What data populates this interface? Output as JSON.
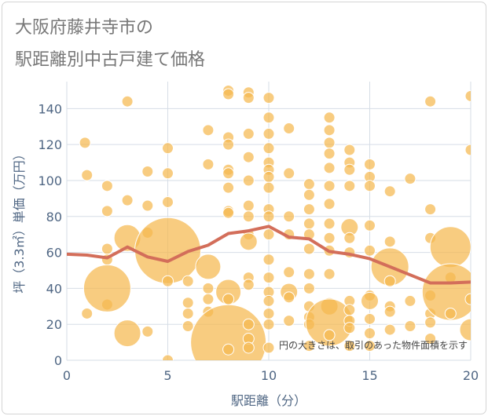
{
  "title_lines": [
    "大阪府藤井寺市の",
    "駅距離別中古戸建て価格"
  ],
  "chart_data": {
    "type": "scatter",
    "title": "大阪府藤井寺市の駅距離別中古戸建て価格",
    "xlabel": "駅距離（分）",
    "ylabel": "坪（3.3㎡）単価（万円）",
    "xlim": [
      0,
      20
    ],
    "ylim": [
      0,
      155
    ],
    "xticks": [
      0,
      5,
      10,
      15,
      20
    ],
    "yticks": [
      0,
      20,
      40,
      60,
      80,
      100,
      120,
      140
    ],
    "grid": true,
    "annotation": "円の大きさは、取引のあった物件面積を示す",
    "colors": {
      "bubble": "#f5b84f",
      "bubble_edge": "#ffffff",
      "line": "#d36e5a",
      "grid": "#d6dde6",
      "axis_text": "#506784"
    },
    "trend": {
      "x": [
        0,
        1,
        2,
        3,
        4,
        5,
        6,
        7,
        8,
        9,
        10,
        11,
        12,
        13,
        14,
        15,
        16,
        17,
        18,
        19,
        20
      ],
      "y": [
        59,
        58.5,
        57,
        63,
        57.5,
        55,
        60.5,
        64,
        70.5,
        72,
        74.5,
        68.5,
        67.5,
        60.5,
        59,
        56.5,
        52,
        47.5,
        43,
        43,
        43.5
      ]
    },
    "bubbles": [
      {
        "x": 0.9,
        "y": 121,
        "r": 7
      },
      {
        "x": 1,
        "y": 103,
        "r": 7
      },
      {
        "x": 1,
        "y": 26,
        "r": 7
      },
      {
        "x": 2,
        "y": 97,
        "r": 7
      },
      {
        "x": 2,
        "y": 83,
        "r": 7
      },
      {
        "x": 2,
        "y": 62,
        "r": 7
      },
      {
        "x": 2,
        "y": 56,
        "r": 7
      },
      {
        "x": 2,
        "y": 31,
        "r": 7
      },
      {
        "x": 2,
        "y": 40,
        "r": 30
      },
      {
        "x": 3,
        "y": 144,
        "r": 7
      },
      {
        "x": 3,
        "y": 89,
        "r": 7
      },
      {
        "x": 3,
        "y": 68,
        "r": 17
      },
      {
        "x": 3,
        "y": 15,
        "r": 17
      },
      {
        "x": 4,
        "y": 105,
        "r": 7
      },
      {
        "x": 4,
        "y": 86,
        "r": 7
      },
      {
        "x": 4,
        "y": 71,
        "r": 7
      },
      {
        "x": 4,
        "y": 16,
        "r": 7
      },
      {
        "x": 5,
        "y": 118,
        "r": 7
      },
      {
        "x": 5,
        "y": 104,
        "r": 7
      },
      {
        "x": 5,
        "y": 88,
        "r": 7
      },
      {
        "x": 5,
        "y": 61,
        "r": 42
      },
      {
        "x": 5,
        "y": 44,
        "r": 7
      },
      {
        "x": 5,
        "y": 0,
        "r": 7
      },
      {
        "x": 6,
        "y": 44,
        "r": 7
      },
      {
        "x": 6,
        "y": 32,
        "r": 7
      },
      {
        "x": 6,
        "y": 26,
        "r": 7
      },
      {
        "x": 6,
        "y": 19,
        "r": 7
      },
      {
        "x": 7,
        "y": 128,
        "r": 7
      },
      {
        "x": 7,
        "y": 109,
        "r": 7
      },
      {
        "x": 7,
        "y": 52,
        "r": 16
      },
      {
        "x": 7,
        "y": 40,
        "r": 7
      },
      {
        "x": 7,
        "y": 34,
        "r": 7
      },
      {
        "x": 7,
        "y": 27,
        "r": 7
      },
      {
        "x": 8,
        "y": 150,
        "r": 7
      },
      {
        "x": 8,
        "y": 148,
        "r": 7
      },
      {
        "x": 8,
        "y": 124,
        "r": 7
      },
      {
        "x": 8,
        "y": 120,
        "r": 7
      },
      {
        "x": 8,
        "y": 106,
        "r": 7
      },
      {
        "x": 8,
        "y": 104,
        "r": 7
      },
      {
        "x": 8,
        "y": 96,
        "r": 7
      },
      {
        "x": 8,
        "y": 83,
        "r": 7
      },
      {
        "x": 8,
        "y": 82,
        "r": 7
      },
      {
        "x": 8,
        "y": 38,
        "r": 16
      },
      {
        "x": 8,
        "y": 34,
        "r": 7
      },
      {
        "x": 8,
        "y": 10,
        "r": 48
      },
      {
        "x": 8,
        "y": 6,
        "r": 7
      },
      {
        "x": 9,
        "y": 149,
        "r": 7
      },
      {
        "x": 9,
        "y": 146,
        "r": 7
      },
      {
        "x": 9,
        "y": 126,
        "r": 7
      },
      {
        "x": 9,
        "y": 113,
        "r": 7
      },
      {
        "x": 9,
        "y": 100,
        "r": 7
      },
      {
        "x": 9,
        "y": 86,
        "r": 7
      },
      {
        "x": 9,
        "y": 80,
        "r": 7
      },
      {
        "x": 9,
        "y": 70,
        "r": 7
      },
      {
        "x": 9,
        "y": 66,
        "r": 11
      },
      {
        "x": 9,
        "y": 46,
        "r": 7
      },
      {
        "x": 9,
        "y": 42,
        "r": 7
      },
      {
        "x": 9,
        "y": 20,
        "r": 7
      },
      {
        "x": 9,
        "y": 12,
        "r": 7
      },
      {
        "x": 9,
        "y": 7,
        "r": 7
      },
      {
        "x": 10,
        "y": 146,
        "r": 7
      },
      {
        "x": 10,
        "y": 135,
        "r": 7
      },
      {
        "x": 10,
        "y": 126,
        "r": 7
      },
      {
        "x": 10,
        "y": 118,
        "r": 7
      },
      {
        "x": 10,
        "y": 110,
        "r": 7
      },
      {
        "x": 10,
        "y": 106,
        "r": 7
      },
      {
        "x": 10,
        "y": 102,
        "r": 7
      },
      {
        "x": 10,
        "y": 96,
        "r": 7
      },
      {
        "x": 10,
        "y": 84,
        "r": 7
      },
      {
        "x": 10,
        "y": 80,
        "r": 7
      },
      {
        "x": 10,
        "y": 70,
        "r": 7
      },
      {
        "x": 10,
        "y": 56,
        "r": 7
      },
      {
        "x": 10,
        "y": 46,
        "r": 7
      },
      {
        "x": 10,
        "y": 38,
        "r": 7
      },
      {
        "x": 10,
        "y": 33,
        "r": 7
      },
      {
        "x": 10,
        "y": 26,
        "r": 7
      },
      {
        "x": 10,
        "y": 20,
        "r": 7
      },
      {
        "x": 10,
        "y": 7,
        "r": 7
      },
      {
        "x": 11,
        "y": 129,
        "r": 7
      },
      {
        "x": 11,
        "y": 104,
        "r": 7
      },
      {
        "x": 11,
        "y": 80,
        "r": 7
      },
      {
        "x": 11,
        "y": 70,
        "r": 7
      },
      {
        "x": 11,
        "y": 49,
        "r": 7
      },
      {
        "x": 11,
        "y": 38,
        "r": 11
      },
      {
        "x": 11,
        "y": 35,
        "r": 7
      },
      {
        "x": 11,
        "y": 22,
        "r": 7
      },
      {
        "x": 12,
        "y": 98,
        "r": 7
      },
      {
        "x": 12,
        "y": 92,
        "r": 7
      },
      {
        "x": 12,
        "y": 84,
        "r": 7
      },
      {
        "x": 12,
        "y": 76,
        "r": 7
      },
      {
        "x": 12,
        "y": 70,
        "r": 7
      },
      {
        "x": 12,
        "y": 62,
        "r": 7
      },
      {
        "x": 12,
        "y": 48,
        "r": 7
      },
      {
        "x": 12,
        "y": 40,
        "r": 7
      },
      {
        "x": 12,
        "y": 30,
        "r": 7
      },
      {
        "x": 12,
        "y": 24,
        "r": 7
      },
      {
        "x": 12,
        "y": 20,
        "r": 7
      },
      {
        "x": 12,
        "y": 8,
        "r": 7
      },
      {
        "x": 13,
        "y": 135,
        "r": 7
      },
      {
        "x": 13,
        "y": 128,
        "r": 7
      },
      {
        "x": 13,
        "y": 121,
        "r": 7
      },
      {
        "x": 13,
        "y": 115,
        "r": 7
      },
      {
        "x": 13,
        "y": 107,
        "r": 7
      },
      {
        "x": 13,
        "y": 97,
        "r": 7
      },
      {
        "x": 13,
        "y": 87,
        "r": 7
      },
      {
        "x": 13,
        "y": 76,
        "r": 7
      },
      {
        "x": 13,
        "y": 68,
        "r": 7
      },
      {
        "x": 13,
        "y": 61,
        "r": 7
      },
      {
        "x": 13,
        "y": 48,
        "r": 7
      },
      {
        "x": 13,
        "y": 30,
        "r": 11
      },
      {
        "x": 13,
        "y": 21,
        "r": 30
      },
      {
        "x": 13,
        "y": 14,
        "r": 7
      },
      {
        "x": 14,
        "y": 117,
        "r": 7
      },
      {
        "x": 14,
        "y": 110,
        "r": 7
      },
      {
        "x": 14,
        "y": 106,
        "r": 7
      },
      {
        "x": 14,
        "y": 97,
        "r": 7
      },
      {
        "x": 14,
        "y": 74,
        "r": 11
      },
      {
        "x": 14,
        "y": 68,
        "r": 7
      },
      {
        "x": 14,
        "y": 60,
        "r": 7
      },
      {
        "x": 14,
        "y": 33,
        "r": 7
      },
      {
        "x": 14,
        "y": 28,
        "r": 7
      },
      {
        "x": 14,
        "y": 22,
        "r": 7
      },
      {
        "x": 14,
        "y": 18,
        "r": 7
      },
      {
        "x": 14,
        "y": 8,
        "r": 7
      },
      {
        "x": 15,
        "y": 109,
        "r": 7
      },
      {
        "x": 15,
        "y": 102,
        "r": 7
      },
      {
        "x": 15,
        "y": 97,
        "r": 7
      },
      {
        "x": 15,
        "y": 75,
        "r": 7
      },
      {
        "x": 15,
        "y": 61,
        "r": 7
      },
      {
        "x": 15,
        "y": 36,
        "r": 7
      },
      {
        "x": 15,
        "y": 33,
        "r": 11
      },
      {
        "x": 15,
        "y": 23,
        "r": 7
      },
      {
        "x": 15,
        "y": 15,
        "r": 7
      },
      {
        "x": 15,
        "y": 8,
        "r": 7
      },
      {
        "x": 16,
        "y": 94,
        "r": 7
      },
      {
        "x": 16,
        "y": 66,
        "r": 7
      },
      {
        "x": 16,
        "y": 52,
        "r": 24
      },
      {
        "x": 16,
        "y": 44,
        "r": 7
      },
      {
        "x": 16,
        "y": 30,
        "r": 7
      },
      {
        "x": 16,
        "y": 27,
        "r": 7
      },
      {
        "x": 16,
        "y": 17,
        "r": 7
      },
      {
        "x": 17,
        "y": 101,
        "r": 7
      },
      {
        "x": 17,
        "y": 33,
        "r": 7
      },
      {
        "x": 17,
        "y": 19,
        "r": 7
      },
      {
        "x": 18,
        "y": 144,
        "r": 7
      },
      {
        "x": 18,
        "y": 84,
        "r": 7
      },
      {
        "x": 18,
        "y": 68,
        "r": 7
      },
      {
        "x": 18,
        "y": 36,
        "r": 7
      },
      {
        "x": 18,
        "y": 26,
        "r": 7
      },
      {
        "x": 18,
        "y": 21,
        "r": 7
      },
      {
        "x": 18,
        "y": 12,
        "r": 7
      },
      {
        "x": 19,
        "y": 63,
        "r": 26
      },
      {
        "x": 19,
        "y": 46,
        "r": 7
      },
      {
        "x": 19,
        "y": 38,
        "r": 36
      },
      {
        "x": 19,
        "y": 26,
        "r": 7
      },
      {
        "x": 20,
        "y": 147,
        "r": 7
      },
      {
        "x": 20,
        "y": 117,
        "r": 7
      },
      {
        "x": 20,
        "y": 34,
        "r": 7
      },
      {
        "x": 20,
        "y": 17,
        "r": 14
      }
    ]
  }
}
